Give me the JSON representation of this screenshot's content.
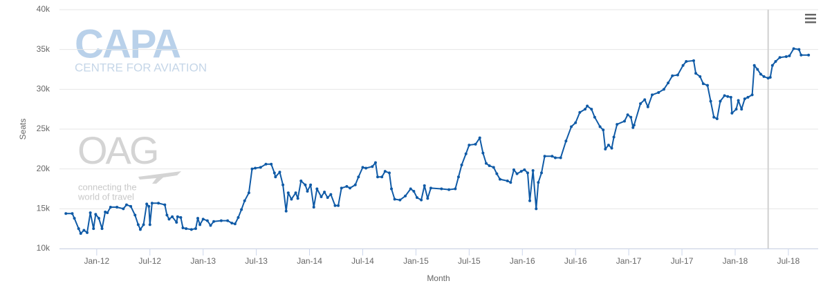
{
  "chart_data": {
    "type": "line",
    "x_label": "Month",
    "y_label": "Seats",
    "color": "#0f5aa6",
    "grid": true,
    "markers": true,
    "xlim": [
      2011.65,
      2018.78
    ],
    "xticks": [
      {
        "value": 2012,
        "label": "Jan-12"
      },
      {
        "value": 2012.5,
        "label": "Jul-12"
      },
      {
        "value": 2013,
        "label": "Jan-13"
      },
      {
        "value": 2013.5,
        "label": "Jul-13"
      },
      {
        "value": 2014,
        "label": "Jan-14"
      },
      {
        "value": 2014.5,
        "label": "Jul-14"
      },
      {
        "value": 2015,
        "label": "Jan-15"
      },
      {
        "value": 2015.5,
        "label": "Jul-15"
      },
      {
        "value": 2016,
        "label": "Jan-16"
      },
      {
        "value": 2016.5,
        "label": "Jul-16"
      },
      {
        "value": 2017,
        "label": "Jan-17"
      },
      {
        "value": 2017.5,
        "label": "Jul-17"
      },
      {
        "value": 2018,
        "label": "Jan-18"
      },
      {
        "value": 2018.5,
        "label": "Jul-18"
      }
    ],
    "ylim": [
      10000,
      40000
    ],
    "yticks": [
      {
        "value": 10000,
        "label": "10k"
      },
      {
        "value": 15000,
        "label": "15k"
      },
      {
        "value": 20000,
        "label": "20k"
      },
      {
        "value": 25000,
        "label": "25k"
      },
      {
        "value": 30000,
        "label": "30k"
      },
      {
        "value": 35000,
        "label": "35k"
      },
      {
        "value": 40000,
        "label": "40k"
      }
    ],
    "vline": 2018.31,
    "x": [
      2011.71,
      2011.77,
      2011.79,
      2011.83,
      2011.85,
      2011.88,
      2011.91,
      2011.94,
      2011.97,
      2011.99,
      2012.02,
      2012.05,
      2012.08,
      2012.1,
      2012.13,
      2012.19,
      2012.25,
      2012.28,
      2012.32,
      2012.36,
      2012.39,
      2012.41,
      2012.44,
      2012.47,
      2012.49,
      2012.5,
      2012.52,
      2012.58,
      2012.64,
      2012.66,
      2012.68,
      2012.71,
      2012.75,
      2012.76,
      2012.79,
      2012.81,
      2012.84,
      2012.89,
      2012.93,
      2012.95,
      2012.97,
      2013,
      2013.04,
      2013.07,
      2013.1,
      2013.17,
      2013.23,
      2013.27,
      2013.3,
      2013.33,
      2013.36,
      2013.39,
      2013.43,
      2013.46,
      2013.49,
      2013.54,
      2013.59,
      2013.64,
      2013.67,
      2013.68,
      2013.72,
      2013.75,
      2013.78,
      2013.8,
      2013.83,
      2013.87,
      2013.89,
      2013.92,
      2013.96,
      2013.98,
      2014.01,
      2014.04,
      2014.07,
      2014.11,
      2014.14,
      2014.17,
      2014.2,
      2014.24,
      2014.27,
      2014.3,
      2014.35,
      2014.38,
      2014.43,
      2014.46,
      2014.5,
      2014.53,
      2014.59,
      2014.62,
      2014.64,
      2014.68,
      2014.71,
      2014.75,
      2014.77,
      2014.8,
      2014.85,
      2014.9,
      2014.95,
      2014.98,
      2015.01,
      2015.05,
      2015.08,
      2015.11,
      2015.14,
      2015.24,
      2015.31,
      2015.37,
      2015.4,
      2015.43,
      2015.47,
      2015.5,
      2015.56,
      2015.6,
      2015.63,
      2015.66,
      2015.69,
      2015.73,
      2015.76,
      2015.79,
      2015.86,
      2015.89,
      2015.92,
      2015.95,
      2015.99,
      2016.02,
      2016.05,
      2016.07,
      2016.1,
      2016.13,
      2016.15,
      2016.18,
      2016.21,
      2016.28,
      2016.31,
      2016.36,
      2016.41,
      2016.46,
      2016.5,
      2016.54,
      2016.59,
      2016.61,
      2016.65,
      2016.68,
      2016.73,
      2016.76,
      2016.78,
      2016.81,
      2016.84,
      2016.86,
      2016.89,
      2016.96,
      2016.99,
      2017.02,
      2017.04,
      2017.05,
      2017.11,
      2017.15,
      2017.18,
      2017.22,
      2017.28,
      2017.33,
      2017.37,
      2017.41,
      2017.46,
      2017.51,
      2017.54,
      2017.61,
      2017.63,
      2017.67,
      2017.7,
      2017.74,
      2017.77,
      2017.8,
      2017.83,
      2017.86,
      2017.9,
      2017.93,
      2017.96,
      2017.97,
      2018.01,
      2018.03,
      2018.06,
      2018.09,
      2018.12,
      2018.16,
      2018.18,
      2018.21,
      2018.24,
      2018.27,
      2018.31,
      2018.33,
      2018.35,
      2018.38,
      2018.42,
      2018.48,
      2018.51,
      2018.55,
      2018.6,
      2018.62,
      2018.69
    ],
    "values": [
      14400,
      14400,
      13800,
      12500,
      11900,
      12300,
      12000,
      14500,
      12500,
      14300,
      13800,
      12500,
      14600,
      14500,
      15200,
      15200,
      15000,
      15500,
      15300,
      14200,
      13000,
      12400,
      13000,
      15600,
      15300,
      13000,
      15700,
      15700,
      15500,
      14200,
      13700,
      14000,
      13300,
      14000,
      13900,
      12600,
      12500,
      12400,
      12500,
      13800,
      13000,
      13700,
      13500,
      12900,
      13400,
      13500,
      13500,
      13200,
      13100,
      13900,
      14900,
      16000,
      17000,
      20000,
      20100,
      20200,
      20600,
      20600,
      19500,
      19000,
      19600,
      18000,
      14700,
      17000,
      16200,
      17000,
      16300,
      18500,
      18000,
      17200,
      18000,
      15200,
      17500,
      16500,
      17100,
      16400,
      16800,
      15400,
      15400,
      17600,
      17800,
      17600,
      18000,
      19000,
      20200,
      20100,
      20300,
      20800,
      19000,
      19000,
      19700,
      19500,
      17500,
      16200,
      16100,
      16600,
      17500,
      17200,
      16400,
      16100,
      17900,
      16300,
      17600,
      17500,
      17400,
      17500,
      19000,
      20500,
      21900,
      23000,
      23100,
      23900,
      22000,
      20700,
      20400,
      20200,
      19400,
      18700,
      18500,
      18300,
      19900,
      19400,
      19700,
      19900,
      19500,
      16000,
      19800,
      15000,
      18300,
      19500,
      21600,
      21600,
      21400,
      21400,
      23500,
      25300,
      25800,
      27100,
      27500,
      27900,
      27500,
      26500,
      25300,
      24900,
      22500,
      23000,
      22600,
      24000,
      25600,
      26000,
      26800,
      26500,
      25200,
      25500,
      28200,
      28700,
      27800,
      29300,
      29600,
      30000,
      30800,
      31700,
      31800,
      33000,
      33500,
      33600,
      32000,
      31600,
      30700,
      30500,
      28500,
      26500,
      26300,
      28500,
      29200,
      29100,
      29000,
      27000,
      27500,
      28600,
      27500,
      28800,
      29000,
      29300,
      33000,
      32500,
      31900,
      31600,
      31400,
      31500,
      33000,
      33500,
      34000,
      34100,
      34200,
      35100,
      35000,
      34300,
      34300
    ]
  },
  "watermarks": {
    "capa": "CAPA",
    "capa_subtitle": "CENTRE FOR AVIATION",
    "oag": "OAG",
    "oag_tagline_1": "connecting the",
    "oag_tagline_2": "world of travel"
  }
}
